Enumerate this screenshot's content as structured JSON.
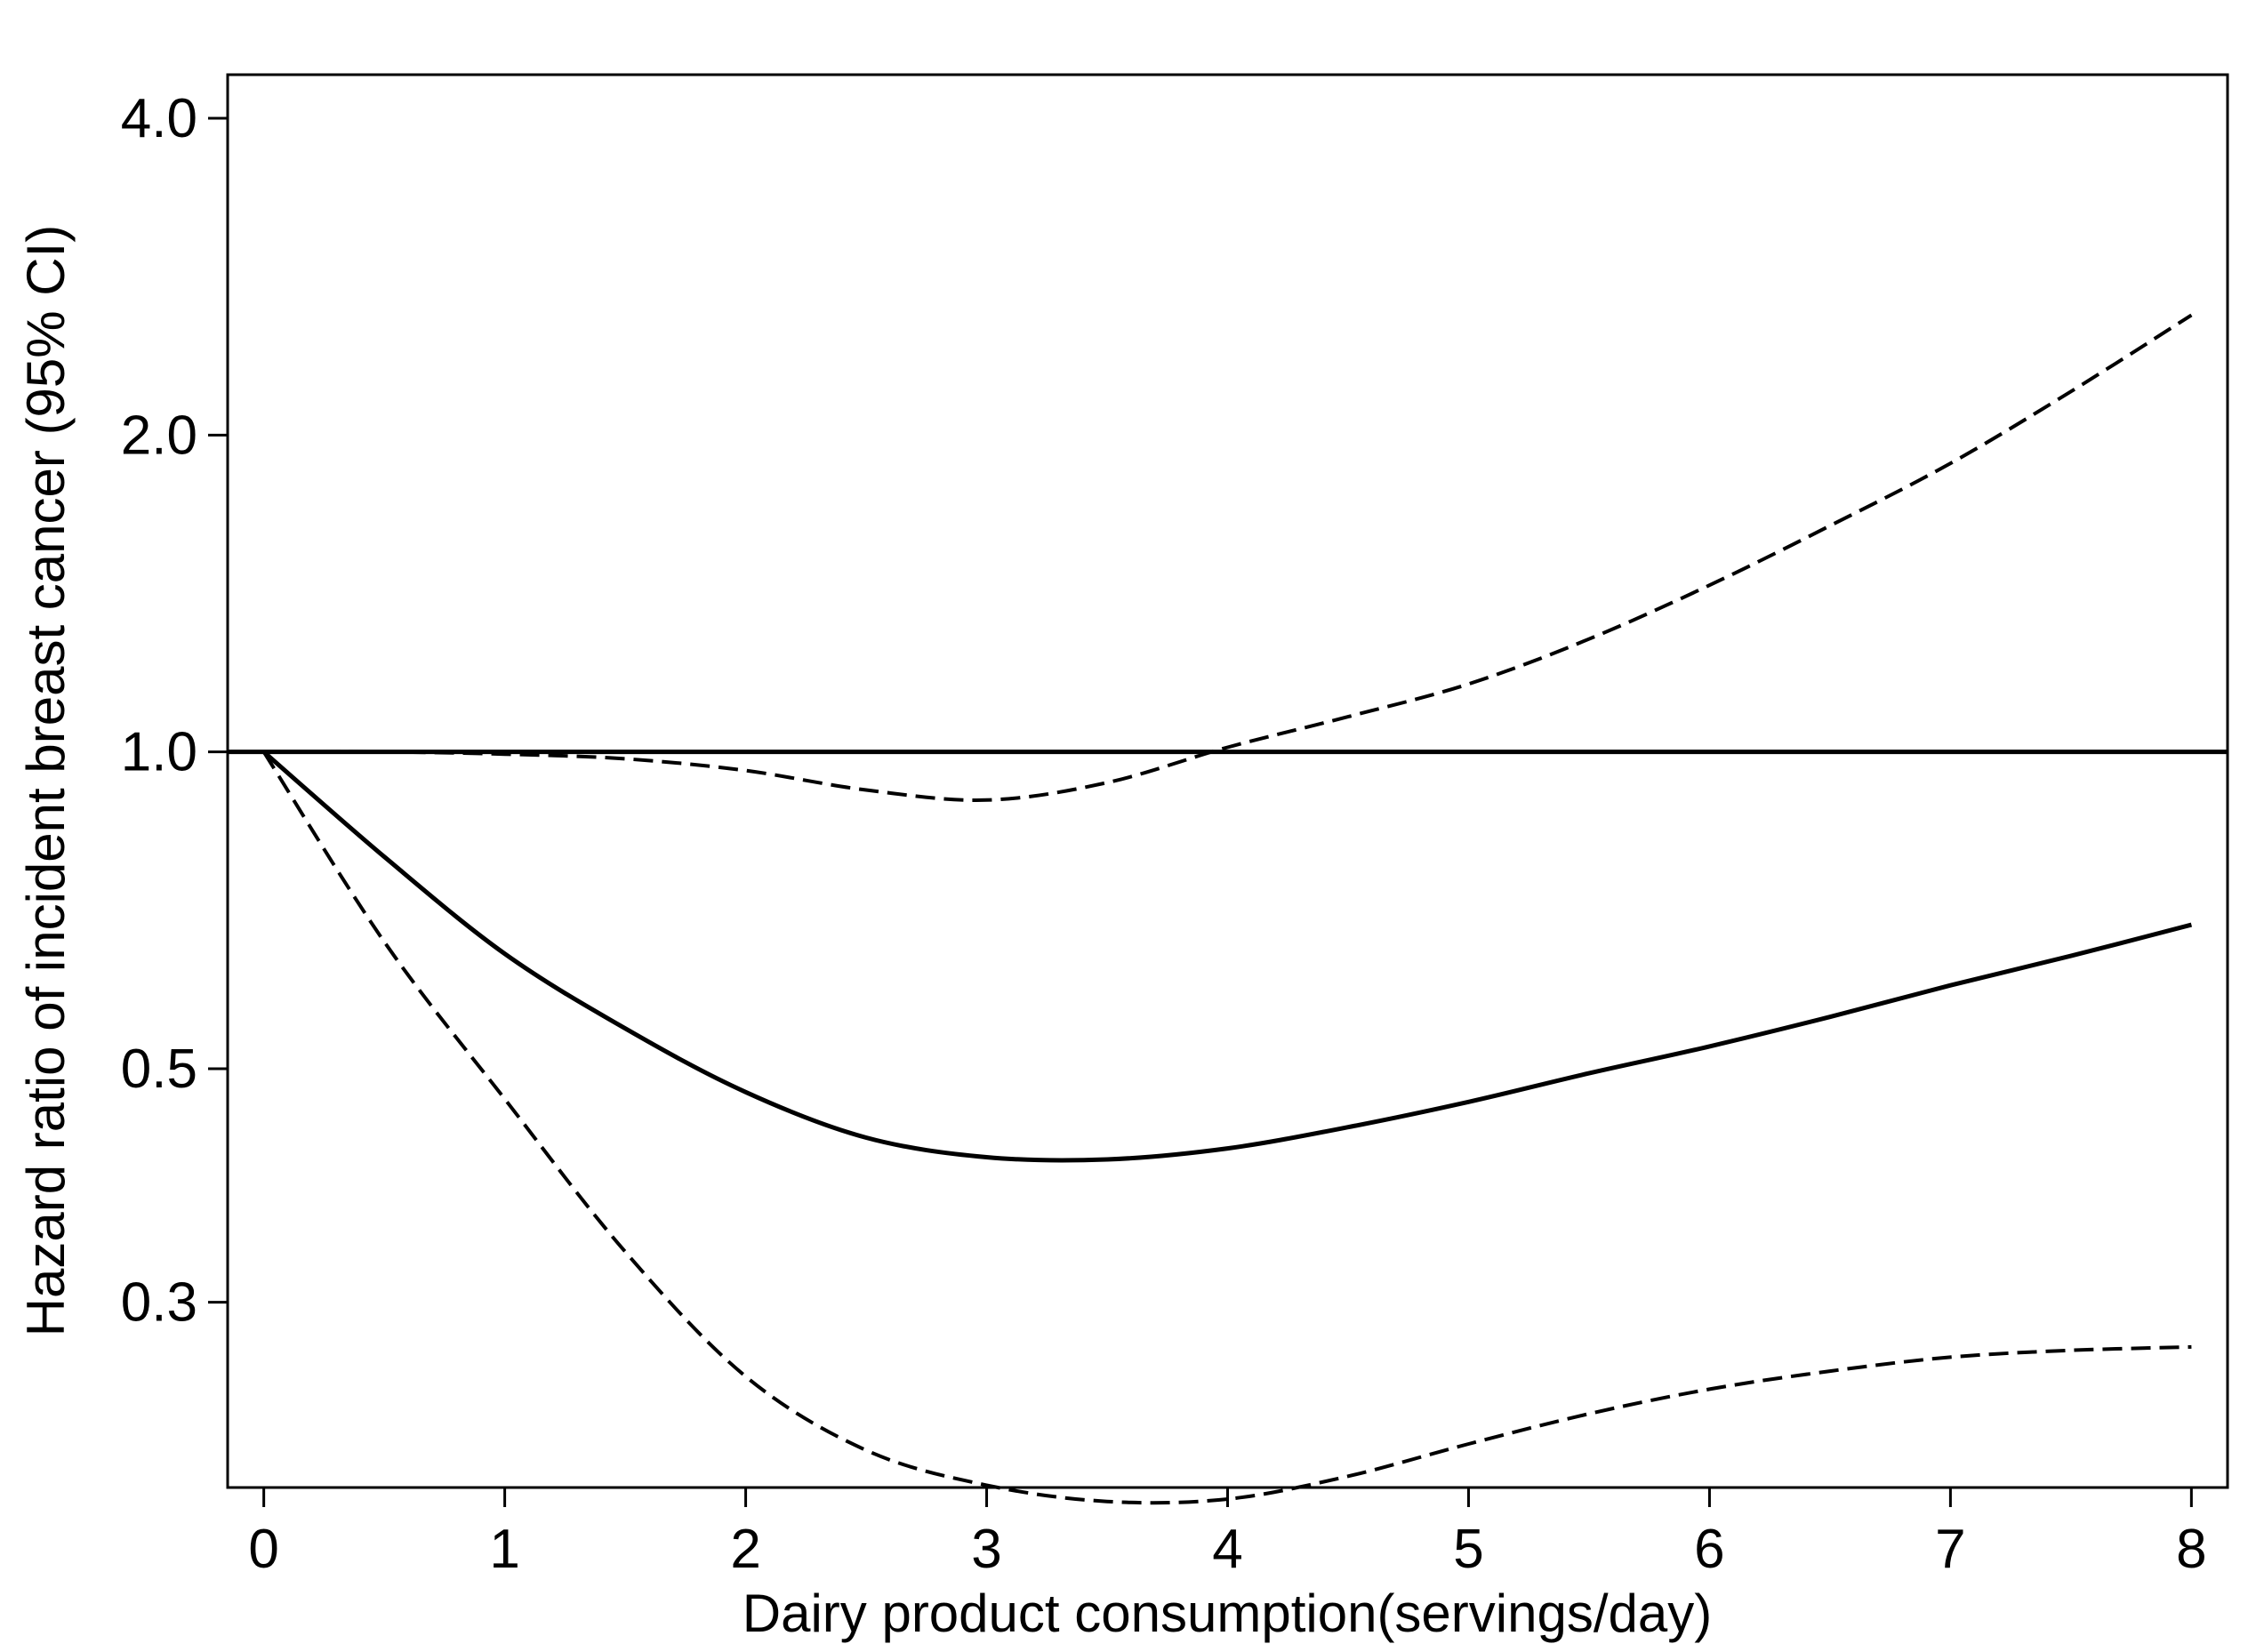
{
  "chart_data": {
    "type": "line",
    "title": "",
    "xlabel": "Dairy product consumption(servings/day)",
    "ylabel": "Hazard ratio of incident breast cancer (95% CI)",
    "xlim": [
      -0.15,
      8.15
    ],
    "ylim": [
      0.2,
      4.4
    ],
    "y_scale": "log",
    "x_ticks": [
      0,
      1,
      2,
      3,
      4,
      5,
      6,
      7,
      8
    ],
    "y_ticks": [
      {
        "value": 0.3,
        "label": "0.3"
      },
      {
        "value": 0.5,
        "label": "0.5"
      },
      {
        "value": 1.0,
        "label": "1.0"
      },
      {
        "value": 2.0,
        "label": "2.0"
      },
      {
        "value": 4.0,
        "label": "4.0"
      }
    ],
    "reference_line": {
      "y": 1.0
    },
    "series": [
      {
        "name": "Hazard ratio",
        "style": "solid",
        "x": [
          0,
          0.5,
          1,
          1.5,
          2,
          2.5,
          3,
          3.5,
          4,
          4.5,
          5,
          5.5,
          6,
          6.5,
          7,
          7.5,
          8
        ],
        "y": [
          1.0,
          0.795,
          0.643,
          0.546,
          0.475,
          0.43,
          0.412,
          0.41,
          0.42,
          0.44,
          0.465,
          0.495,
          0.525,
          0.56,
          0.6,
          0.64,
          0.685
        ]
      },
      {
        "name": "Upper 95% CI",
        "style": "dashed",
        "x": [
          0,
          0.5,
          1,
          1.5,
          2,
          2.5,
          3,
          3.5,
          4,
          4.5,
          5,
          5.5,
          6,
          6.5,
          7,
          7.5,
          8
        ],
        "y": [
          1.0,
          1.0,
          0.995,
          0.985,
          0.96,
          0.92,
          0.9,
          0.935,
          1.01,
          1.08,
          1.16,
          1.28,
          1.44,
          1.64,
          1.88,
          2.2,
          2.6
        ]
      },
      {
        "name": "Lower 95% CI",
        "style": "dashed",
        "x": [
          0,
          0.5,
          1,
          1.5,
          2,
          2.5,
          3,
          3.5,
          4,
          4.5,
          5,
          5.5,
          6,
          6.5,
          7,
          7.5,
          8
        ],
        "y": [
          1.0,
          0.66,
          0.468,
          0.335,
          0.255,
          0.217,
          0.201,
          0.194,
          0.195,
          0.205,
          0.22,
          0.235,
          0.248,
          0.258,
          0.266,
          0.27,
          0.272
        ]
      }
    ]
  }
}
